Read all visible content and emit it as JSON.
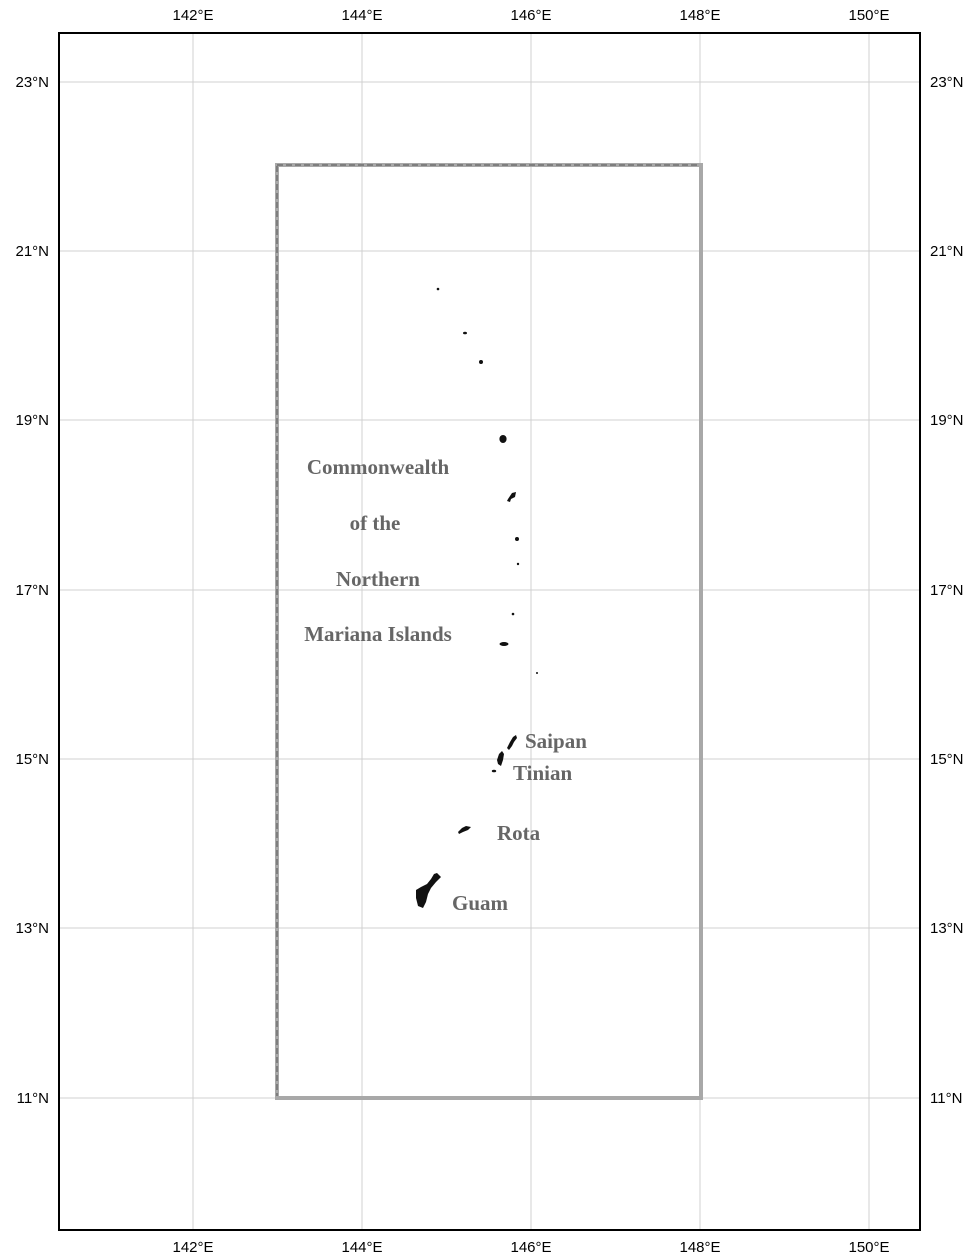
{
  "map": {
    "lon_ticks": [
      "142°E",
      "144°E",
      "146°E",
      "148°E",
      "150°E"
    ],
    "lat_ticks": [
      "23°N",
      "21°N",
      "19°N",
      "17°N",
      "15°N",
      "13°N",
      "11°N"
    ],
    "extent": {
      "lon_min": 140.4,
      "lon_max": 150.6,
      "lat_min": 9.4,
      "lat_max": 23.6
    },
    "inset_box": {
      "lon_min": 143.0,
      "lon_max": 148.0,
      "lat_min": 11.0,
      "lat_max": 22.0,
      "color": "#a8a8a8"
    },
    "region_label": [
      "Commonwealth",
      "of the",
      "Northern",
      "Mariana Islands"
    ],
    "islands": [
      {
        "label": "Saipan"
      },
      {
        "label": "Tinian"
      },
      {
        "label": "Rota"
      },
      {
        "label": "Guam"
      }
    ],
    "colors": {
      "land": "#111111",
      "label": "#666666",
      "grid": "#d0d0d0",
      "frame": "#000000"
    }
  }
}
